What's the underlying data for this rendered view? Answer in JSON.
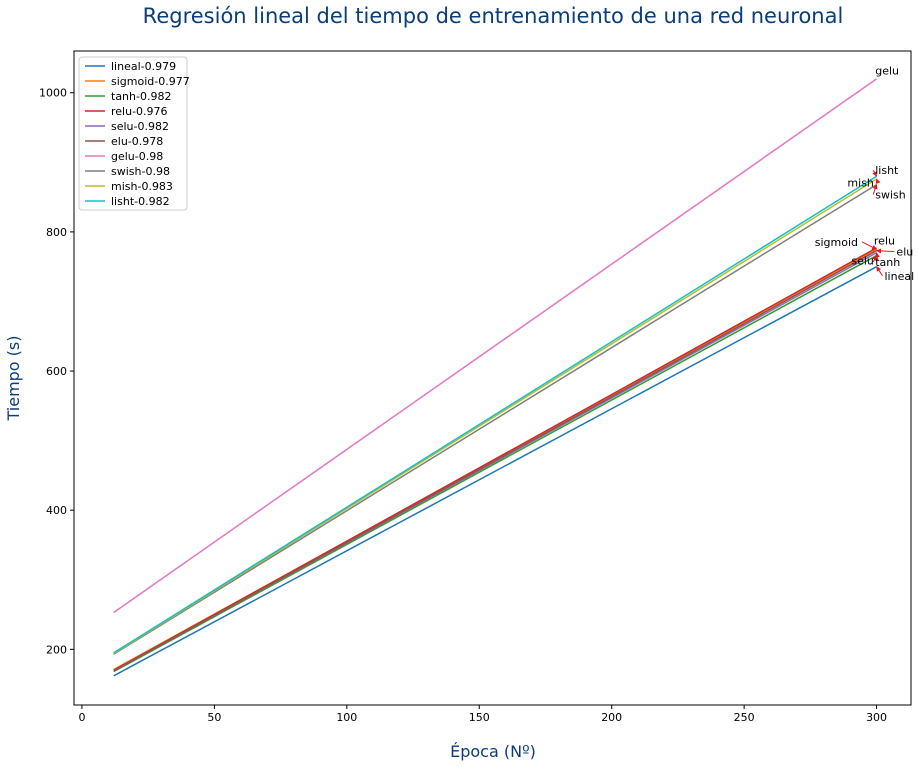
{
  "chart_data": {
    "type": "line",
    "title": "Regresión lineal del tiempo de entrenamiento de una red neuronal",
    "xlabel": "Época (Nº)",
    "ylabel": "Tiempo (s)",
    "xlim": [
      -3,
      313
    ],
    "ylim": [
      120,
      1060
    ],
    "xticks": [
      0,
      50,
      100,
      150,
      200,
      250,
      300
    ],
    "yticks": [
      200,
      400,
      600,
      800,
      1000
    ],
    "grid": false,
    "legend_position": "top-left",
    "series": [
      {
        "name": "lineal-0.979",
        "label": "lineal",
        "color": "#1f77b4",
        "x": [
          12,
          300
        ],
        "y": [
          162,
          750
        ]
      },
      {
        "name": "sigmoid-0.977",
        "label": "sigmoid",
        "color": "#ff7f0e",
        "x": [
          12,
          300
        ],
        "y": [
          171,
          775
        ]
      },
      {
        "name": "tanh-0.982",
        "label": "tanh",
        "color": "#2ca02c",
        "x": [
          12,
          300
        ],
        "y": [
          168,
          766
        ]
      },
      {
        "name": "relu-0.976",
        "label": "relu",
        "color": "#d62728",
        "x": [
          12,
          300
        ],
        "y": [
          170,
          777
        ]
      },
      {
        "name": "selu-0.982",
        "label": "selu",
        "color": "#9467bd",
        "x": [
          12,
          300
        ],
        "y": [
          169,
          770
        ]
      },
      {
        "name": "elu-0.978",
        "label": "elu",
        "color": "#8c564b",
        "x": [
          12,
          300
        ],
        "y": [
          169,
          773
        ]
      },
      {
        "name": "gelu-0.98",
        "label": "gelu",
        "color": "#e377c2",
        "x": [
          12,
          300
        ],
        "y": [
          253,
          1020
        ]
      },
      {
        "name": "swish-0.98",
        "label": "swish",
        "color": "#7f7f7f",
        "x": [
          12,
          300
        ],
        "y": [
          193,
          868
        ]
      },
      {
        "name": "mish-0.983",
        "label": "mish",
        "color": "#bcbd22",
        "x": [
          12,
          300
        ],
        "y": [
          194,
          876
        ]
      },
      {
        "name": "lisht-0.982",
        "label": "lisht",
        "color": "#17becf",
        "x": [
          12,
          300
        ],
        "y": [
          195,
          880
        ]
      }
    ],
    "annotations": [
      {
        "text": "gelu",
        "x": 300,
        "y": 1020,
        "tx": 299.5,
        "ty": 1026,
        "anchor": "start",
        "arrow": false
      },
      {
        "text": "lisht",
        "x": 300,
        "y": 880,
        "tx": 299.5,
        "ty": 883,
        "anchor": "start",
        "arrow": true
      },
      {
        "text": "mish",
        "x": 300,
        "y": 876,
        "tx": 299,
        "ty": 865,
        "anchor": "end",
        "arrow": true
      },
      {
        "text": "swish",
        "x": 300,
        "y": 868,
        "tx": 299.5,
        "ty": 848,
        "anchor": "start",
        "arrow": true
      },
      {
        "text": "relu",
        "x": 300,
        "y": 777,
        "tx": 299,
        "ty": 782,
        "anchor": "start",
        "arrow": false
      },
      {
        "text": "sigmoid",
        "x": 300,
        "y": 775,
        "tx": 293,
        "ty": 780,
        "anchor": "end",
        "arrow": true
      },
      {
        "text": "elu",
        "x": 300,
        "y": 773,
        "tx": 307.5,
        "ty": 766,
        "anchor": "start",
        "arrow": true
      },
      {
        "text": "selu",
        "x": 300,
        "y": 770,
        "tx": 299,
        "ty": 753,
        "anchor": "end",
        "arrow": true
      },
      {
        "text": "tanh",
        "x": 300,
        "y": 766,
        "tx": 299.5,
        "ty": 751,
        "anchor": "start",
        "arrow": true
      },
      {
        "text": "lineal",
        "x": 300,
        "y": 750,
        "tx": 303,
        "ty": 731,
        "anchor": "start",
        "arrow": true
      }
    ],
    "arrow_color": "#e31a1c"
  }
}
